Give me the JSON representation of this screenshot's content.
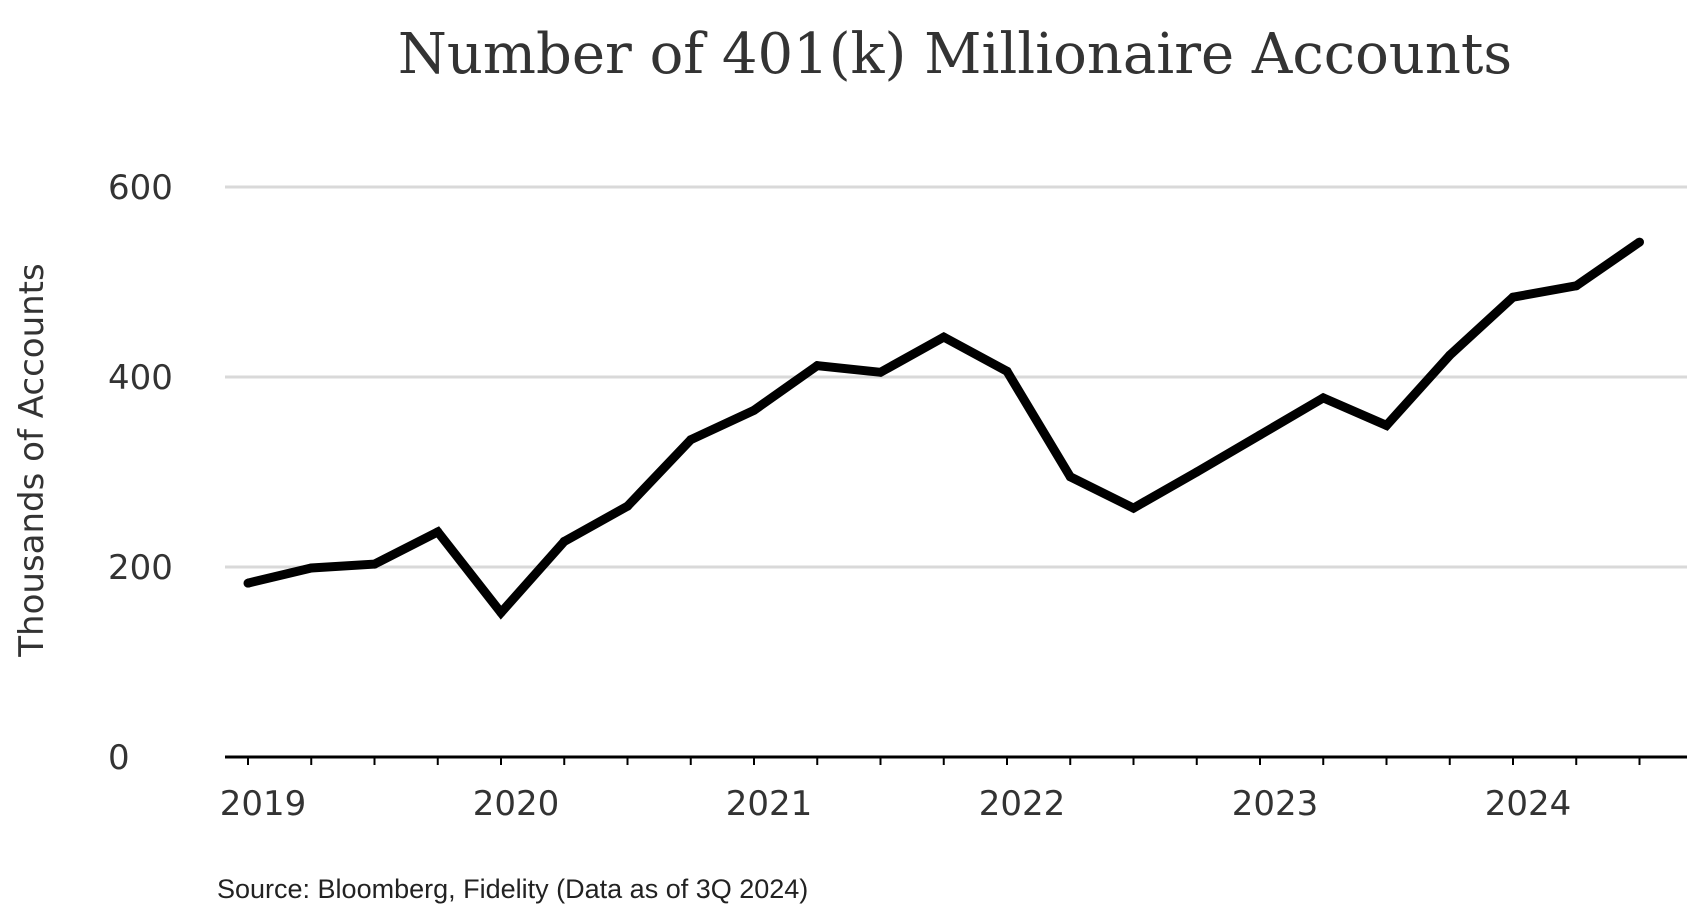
{
  "chart_data": {
    "type": "line",
    "title": "Number of 401(k) Millionaire Accounts",
    "xlabel": "",
    "ylabel": "Thousands of Accounts",
    "source": "Source: Bloomberg, Fidelity (Data as of 3Q 2024)",
    "ylim": [
      0,
      600
    ],
    "yticks": [
      0,
      200,
      400,
      600
    ],
    "xlim": [
      2019.0,
      2024.75
    ],
    "xtick_labels": [
      "2019",
      "2020",
      "2021",
      "2022",
      "2023",
      "2024"
    ],
    "xtick_positions": [
      2019,
      2020,
      2021,
      2022,
      2023,
      2024
    ],
    "grid": true,
    "colors": {
      "line": "#000000",
      "grid": "#d9d9d9",
      "axis": "#000000",
      "text": "#333333"
    },
    "series": [
      {
        "x": [
          2019.0,
          2019.25,
          2019.5,
          2019.75,
          2020.0,
          2020.25,
          2020.5,
          2020.75,
          2021.0,
          2021.25,
          2021.5,
          2021.75,
          2022.0,
          2022.25,
          2022.5,
          2022.75,
          2023.0,
          2023.25,
          2023.5,
          2023.75,
          2024.0,
          2024.25,
          2024.5
        ],
        "values": [
          183,
          199,
          203,
          237,
          152,
          227,
          264,
          334,
          365,
          412,
          405,
          442,
          406,
          295,
          262,
          300,
          339,
          378,
          349,
          423,
          484,
          496,
          542
        ]
      }
    ]
  }
}
